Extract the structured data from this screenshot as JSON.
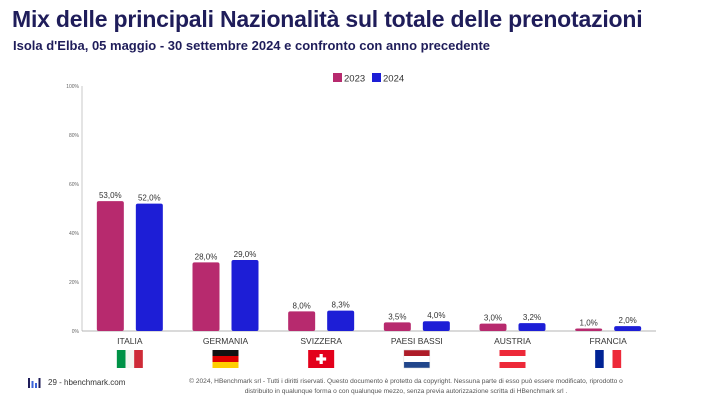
{
  "header": {
    "title": "Mix delle principali Nazionalità sul totale delle prenotazioni",
    "subtitle": "Isola d'Elba, 05 maggio - 30 settembre 2024 e confronto con anno precedente"
  },
  "chart_data": {
    "type": "bar",
    "categories": [
      "ITALIA",
      "GERMANIA",
      "SVIZZERA",
      "PAESI BASSI",
      "AUSTRIA",
      "FRANCIA"
    ],
    "series": [
      {
        "name": "2023",
        "color": "#b72a6e",
        "values": [
          53.0,
          28.0,
          8.0,
          3.5,
          3.0,
          1.0
        ],
        "labels": [
          "53,0%",
          "28,0%",
          "8,0%",
          "3,5%",
          "3,0%",
          "1,0%"
        ]
      },
      {
        "name": "2024",
        "color": "#1d1ed6",
        "values": [
          52.0,
          29.0,
          8.3,
          4.0,
          3.2,
          2.0
        ],
        "labels": [
          "52,0%",
          "29,0%",
          "8,3%",
          "4,0%",
          "3,2%",
          "2,0%"
        ]
      }
    ],
    "yticks": [
      "0%",
      "20%",
      "40%",
      "60%",
      "80%",
      "100%"
    ],
    "ylim": [
      0,
      100
    ],
    "grid": false,
    "legend_position": "top-center",
    "flags": [
      "italy-flag-icon",
      "germany-flag-icon",
      "switzerland-flag-icon",
      "netherlands-flag-icon",
      "austria-flag-icon",
      "france-flag-icon"
    ]
  },
  "footer": {
    "page": "29 - hbenchmark.com",
    "copyright_line1": "© 2024, HBenchmark srl - Tutti i diritti riservati. Questo documento è protetto da copyright. Nessuna parte di esso può essere modificato, riprodotto o",
    "copyright_line2": "distribuito in qualunque forma o con qualunque mezzo, senza previa autorizzazione scritta di HBenchmark srl .",
    "logo_icon": "hbenchmark-logo-icon",
    "accent_color": "#1f1d5a"
  }
}
